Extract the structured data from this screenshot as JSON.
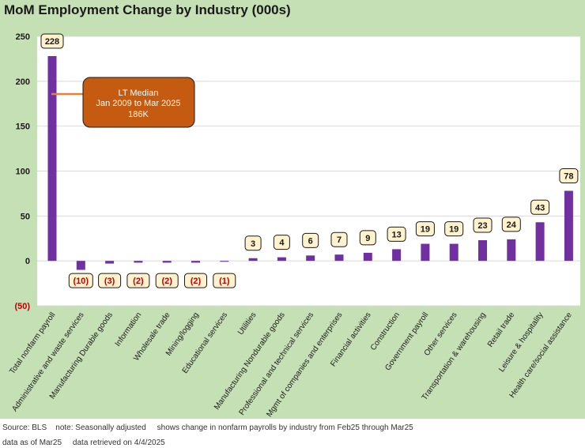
{
  "title": "MoM Employment Change by Industry (000s)",
  "footer": {
    "line1": "Source: BLS    note: Seasonally adjusted     shows change in nonfarm payrolls by industry from Feb25 through Mar25",
    "line2": "data as of Mar25     data retrieved on 4/4/2025"
  },
  "annotation": {
    "line1": "LT Median",
    "line2": "Jan 2009 to Mar 2025",
    "line3": "186K"
  },
  "colors": {
    "bar": "#7030a0",
    "background": "#c5e0b4",
    "plot": "#ffffff",
    "label_box": "#fff2cc",
    "negative_label": "#c00000",
    "annotation_fill": "#c55a11",
    "annotation_line": "#ed7d31"
  },
  "chart_data": {
    "type": "bar",
    "title": "MoM Employment Change by Industry (000s)",
    "xlabel": "",
    "ylabel": "",
    "ylim": [
      -50,
      250
    ],
    "yticks": [
      250,
      200,
      150,
      100,
      50,
      0,
      -50
    ],
    "ytick_labels": [
      "250",
      "200",
      "150",
      "100",
      "50",
      "0",
      "(50)"
    ],
    "categories": [
      "Total nonfarm payroll",
      "Administrative and waste services",
      "Manufacturing Durable goods",
      "Information",
      "Wholesale trade",
      "Mining/logging",
      "Educational services",
      "Utilities",
      "Manufacturing Nondurable goods",
      "Professional and technical services",
      "Mgmt of companies and enterprises",
      "Financial activities",
      "Construction",
      "Government payroll",
      "Other services",
      "Transportation & warehousing",
      "Retail trade",
      "Leisure & hospitality",
      "Health care/social assistance"
    ],
    "values": [
      228,
      -10,
      -3,
      -2,
      -2,
      -2,
      -1,
      3,
      4,
      6,
      7,
      9,
      13,
      19,
      19,
      23,
      24,
      43,
      78
    ],
    "data_labels": [
      "228",
      "(10)",
      "(3)",
      "(2)",
      "(2)",
      "(2)",
      "(1)",
      "3",
      "4",
      "6",
      "7",
      "9",
      "13",
      "19",
      "19",
      "23",
      "24",
      "43",
      "78"
    ],
    "grid": true,
    "legend": "none"
  }
}
